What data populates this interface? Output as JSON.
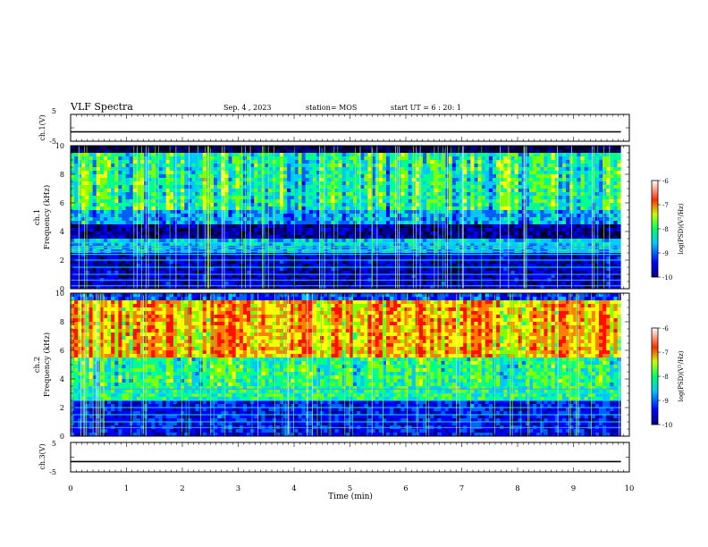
{
  "header": {
    "title": "VLF Spectra",
    "date": "Sep. 4 , 2023",
    "station": "station= MOS",
    "start": "start UT =   6 : 20: 1"
  },
  "chart_data": [
    {
      "type": "line",
      "name": "ch1-waveform",
      "ylabel": "ch.1(V)",
      "ylim": [
        -5,
        5
      ],
      "yticks": [
        "5",
        "-5"
      ],
      "x": [
        0,
        10
      ],
      "series": [
        {
          "values": [
            -1.5,
            -1.5
          ]
        }
      ]
    },
    {
      "type": "heatmap",
      "name": "ch1-spectrogram",
      "ylabel": "ch.1\nFrequency (kHz)",
      "ylim": [
        0,
        10
      ],
      "yticks": [
        "0",
        "2",
        "4",
        "6",
        "8",
        "10"
      ],
      "xlim": [
        0,
        10
      ],
      "colorbar": {
        "label": "log(PSD)(V²/Hz)",
        "range": [
          -10,
          -6
        ],
        "ticks": [
          "-6",
          "-7",
          "-8",
          "-9",
          "-10"
        ]
      },
      "note_bands_khz": [
        0.2,
        0.6,
        1.0,
        1.5,
        2.0,
        2.4,
        2.6,
        2.9,
        3.2
      ]
    },
    {
      "type": "heatmap",
      "name": "ch2-spectrogram",
      "ylabel": "ch.2\nFrequency (kHz)",
      "ylim": [
        0,
        10
      ],
      "yticks": [
        "0",
        "2",
        "4",
        "6",
        "8",
        "10"
      ],
      "xlim": [
        0,
        10
      ],
      "colorbar": {
        "label": "log(PSD)(V²/Hz)",
        "range": [
          -10,
          -6
        ],
        "ticks": [
          "-6",
          "-7",
          "-8",
          "-9",
          "-10"
        ]
      },
      "note_bands_khz": [
        0.6,
        1.0,
        1.5,
        2.0,
        2.5,
        3.0,
        3.3
      ]
    },
    {
      "type": "line",
      "name": "ch3-waveform",
      "ylabel": "ch.3(V)",
      "ylim": [
        -5,
        5
      ],
      "yticks": [
        "5",
        "-5"
      ],
      "x": [
        0,
        10
      ],
      "series": [
        {
          "values": [
            -1.5,
            -1.5
          ]
        }
      ]
    }
  ],
  "xaxis": {
    "label": "Time (min)",
    "ticks": [
      "0",
      "1",
      "2",
      "3",
      "4",
      "5",
      "6",
      "7",
      "8",
      "9",
      "10"
    ],
    "xlim": [
      0,
      10
    ],
    "data_end": 9.85
  }
}
